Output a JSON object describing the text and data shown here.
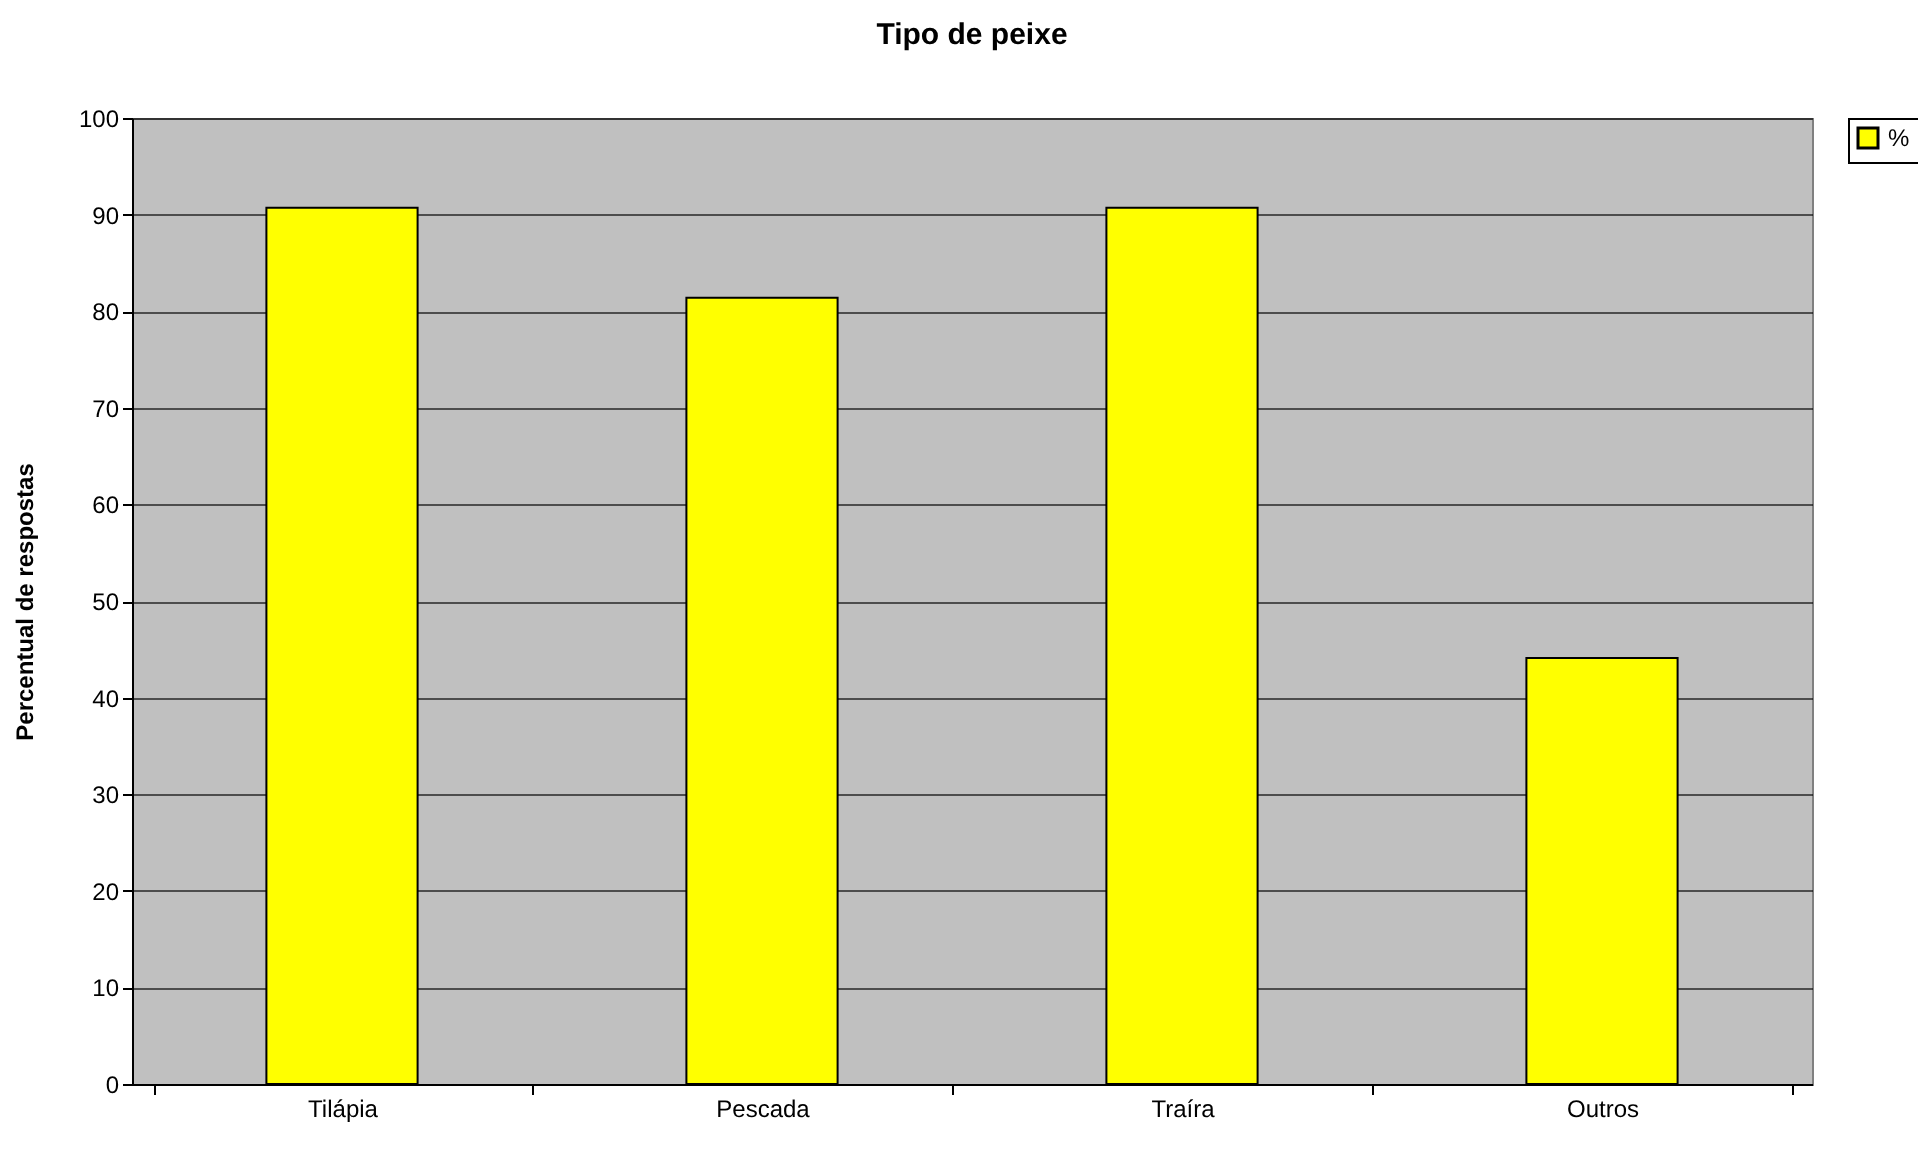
{
  "chart_data": {
    "type": "bar",
    "title": "Tipo de peixe",
    "ylabel": "Percentual de respostas",
    "categories": [
      "Tilápia",
      "Pescada",
      "Traíra",
      "Outros"
    ],
    "series": [
      {
        "name": "%",
        "color": "#ffff00",
        "values": [
          90.7,
          81.4,
          90.7,
          44.1
        ]
      }
    ],
    "ylim": [
      0,
      100
    ],
    "yticks": [
      0,
      10,
      20,
      30,
      40,
      50,
      60,
      70,
      80,
      90,
      100
    ],
    "grid": "y",
    "legend": "right"
  }
}
